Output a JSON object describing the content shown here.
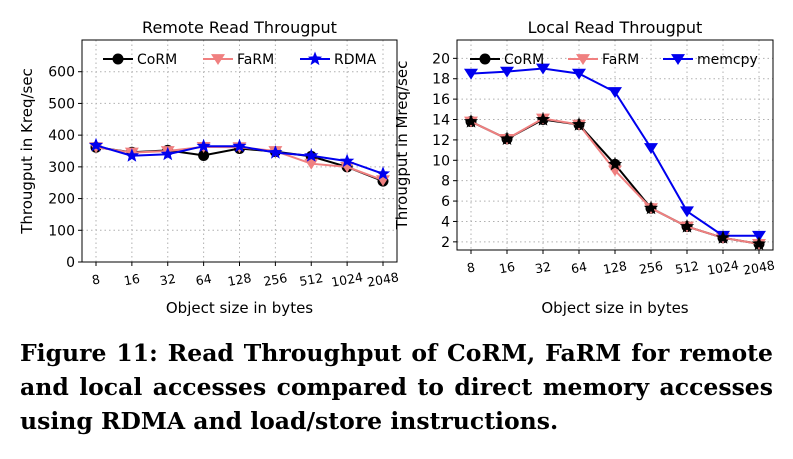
{
  "figure": {
    "caption": "Figure 11: Read Throughput of CoRM, FaRM for remote and local accesses compared to direct memory accesses using RDMA and load/store instructions."
  },
  "colors": {
    "corm": "#000000",
    "farm": "#f08080",
    "rdma": "#0000ee",
    "memcpy": "#0000ee",
    "grid": "#b0b0b0"
  },
  "chart_data": [
    {
      "type": "line",
      "title": "Remote Read Througput",
      "xlabel": "Object size in bytes",
      "ylabel": "Througput in Kreq/sec",
      "categories": [
        "8",
        "16",
        "32",
        "64",
        "128",
        "256",
        "512",
        "1024",
        "2048"
      ],
      "ylim": [
        0,
        700
      ],
      "yticks": [
        0,
        100,
        200,
        300,
        400,
        500,
        600
      ],
      "grid": true,
      "legend_position": "top",
      "series": [
        {
          "name": "CoRM",
          "marker": "circle",
          "color": "#000000",
          "values": [
            362,
            346,
            352,
            336,
            358,
            348,
            333,
            300,
            255
          ]
        },
        {
          "name": "FaRM",
          "marker": "triangle-down",
          "color": "#f08080",
          "values": [
            362,
            345,
            350,
            363,
            362,
            350,
            310,
            300,
            258
          ]
        },
        {
          "name": "RDMA",
          "marker": "star",
          "color": "#0000ee",
          "values": [
            368,
            335,
            340,
            365,
            365,
            345,
            335,
            318,
            278
          ]
        }
      ]
    },
    {
      "type": "line",
      "title": "Local Read Througput",
      "xlabel": "Object size in bytes",
      "ylabel": "Througput in Mreq/sec",
      "categories": [
        "8",
        "16",
        "32",
        "64",
        "128",
        "256",
        "512",
        "1024",
        "2048"
      ],
      "ylim": [
        1.2,
        21.8
      ],
      "yticks": [
        2,
        4,
        6,
        8,
        10,
        12,
        14,
        16,
        18,
        20
      ],
      "grid": true,
      "legend_position": "top",
      "series": [
        {
          "name": "CoRM",
          "marker": "circle",
          "color": "#000000",
          "values": [
            13.8,
            12.1,
            14.0,
            13.5,
            9.6,
            5.3,
            3.5,
            2.4,
            1.8
          ]
        },
        {
          "name": "FaRM",
          "marker": "triangle-down",
          "color": "#f08080",
          "values": [
            13.8,
            12.1,
            14.1,
            13.5,
            9.0,
            5.3,
            3.5,
            2.4,
            1.8
          ]
        },
        {
          "name": "memcpy",
          "marker": "triangle-down",
          "color": "#0000ee",
          "values": [
            18.5,
            18.7,
            19.0,
            18.5,
            16.7,
            11.2,
            5.0,
            2.6,
            2.6
          ]
        }
      ]
    }
  ]
}
